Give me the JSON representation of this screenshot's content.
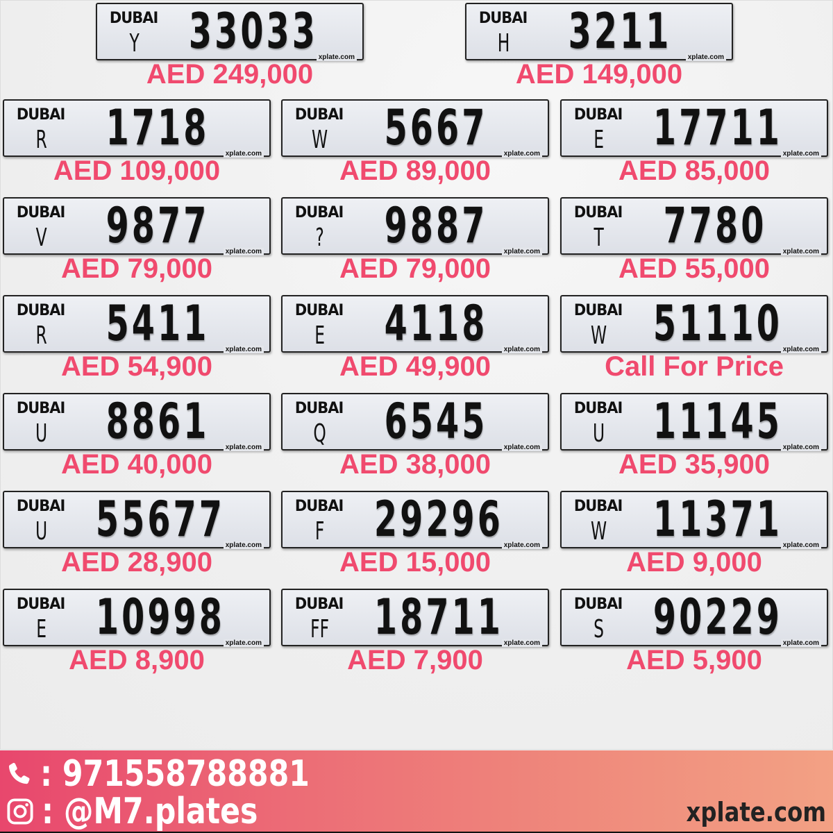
{
  "plate_emirate": "DUBAI",
  "plate_watermark": "xplate.com",
  "listings": [
    {
      "letter": "Y",
      "number": "33033",
      "price": "AED 249,000"
    },
    {
      "letter": "H",
      "number": "3211",
      "price": "AED 149,000"
    },
    {
      "letter": "R",
      "number": "1718",
      "price": "AED 109,000"
    },
    {
      "letter": "W",
      "number": "5667",
      "price": "AED 89,000"
    },
    {
      "letter": "E",
      "number": "17711",
      "price": "AED 85,000"
    },
    {
      "letter": "V",
      "number": "9877",
      "price": "AED 79,000"
    },
    {
      "letter": "?",
      "number": "9887",
      "price": "AED 79,000"
    },
    {
      "letter": "T",
      "number": "7780",
      "price": "AED 55,000"
    },
    {
      "letter": "R",
      "number": "5411",
      "price": "AED 54,900"
    },
    {
      "letter": "E",
      "number": "4118",
      "price": "AED 49,900"
    },
    {
      "letter": "W",
      "number": "51110",
      "price": "Call For Price"
    },
    {
      "letter": "U",
      "number": "8861",
      "price": "AED 40,000"
    },
    {
      "letter": "Q",
      "number": "6545",
      "price": "AED 38,000"
    },
    {
      "letter": "U",
      "number": "11145",
      "price": "AED 35,900"
    },
    {
      "letter": "U",
      "number": "55677",
      "price": "AED 28,900"
    },
    {
      "letter": "F",
      "number": "29296",
      "price": "AED 15,000"
    },
    {
      "letter": "W",
      "number": "11371",
      "price": "AED 9,000"
    },
    {
      "letter": "E",
      "number": "10998",
      "price": "AED 8,900"
    },
    {
      "letter": "FF",
      "number": "18711",
      "price": "AED 7,900"
    },
    {
      "letter": "S",
      "number": "90229",
      "price": "AED 5,900"
    }
  ],
  "footer": {
    "phone_icon": "phone-icon",
    "phone": ": 971558788881",
    "instagram_icon": "instagram-icon",
    "instagram": ": @M7.plates",
    "site": "xplate.com",
    "gradient": [
      "#e8476d",
      "#f3a184"
    ]
  },
  "colors": {
    "price": "#f04a6e"
  }
}
